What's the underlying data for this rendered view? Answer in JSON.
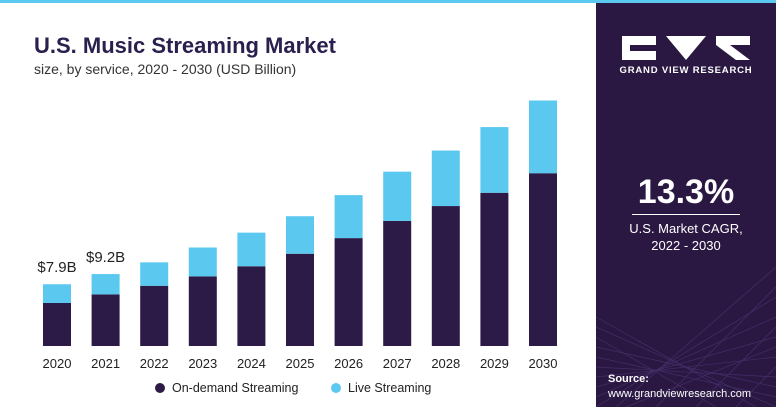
{
  "chart_data": {
    "type": "bar",
    "stacked": true,
    "title": "U.S. Music Streaming Market",
    "subtitle": "size, by service, 2020 - 2030 (USD Billion)",
    "categories": [
      "2020",
      "2021",
      "2022",
      "2023",
      "2024",
      "2025",
      "2026",
      "2027",
      "2028",
      "2029",
      "2030"
    ],
    "series": [
      {
        "name": "On-demand Streaming",
        "color": "#2c1a47",
        "values": [
          5.5,
          6.6,
          7.7,
          8.9,
          10.2,
          11.8,
          13.8,
          16.0,
          17.9,
          19.6,
          22.1
        ]
      },
      {
        "name": "Live Streaming",
        "color": "#5bc8ef",
        "values": [
          2.4,
          2.6,
          3.0,
          3.7,
          4.3,
          4.8,
          5.5,
          6.3,
          7.1,
          8.4,
          9.3
        ]
      }
    ],
    "annotations": [
      {
        "category": "2020",
        "label": "$7.9B"
      },
      {
        "category": "2021",
        "label": "$9.2B"
      }
    ],
    "ylim": [
      0,
      33
    ],
    "grid": false,
    "legend_position": "bottom"
  },
  "sidebar": {
    "brand": "GRAND VIEW RESEARCH",
    "cagr_value": "13.3%",
    "cagr_label_1": "U.S. Market CAGR,",
    "cagr_label_2": "2022 - 2030",
    "source_label": "Source:",
    "source_url": "www.grandviewresearch.com"
  },
  "colors": {
    "accent": "#5bc8ef",
    "dark": "#2c1a47",
    "sidebar_bg": "#2a1843"
  }
}
